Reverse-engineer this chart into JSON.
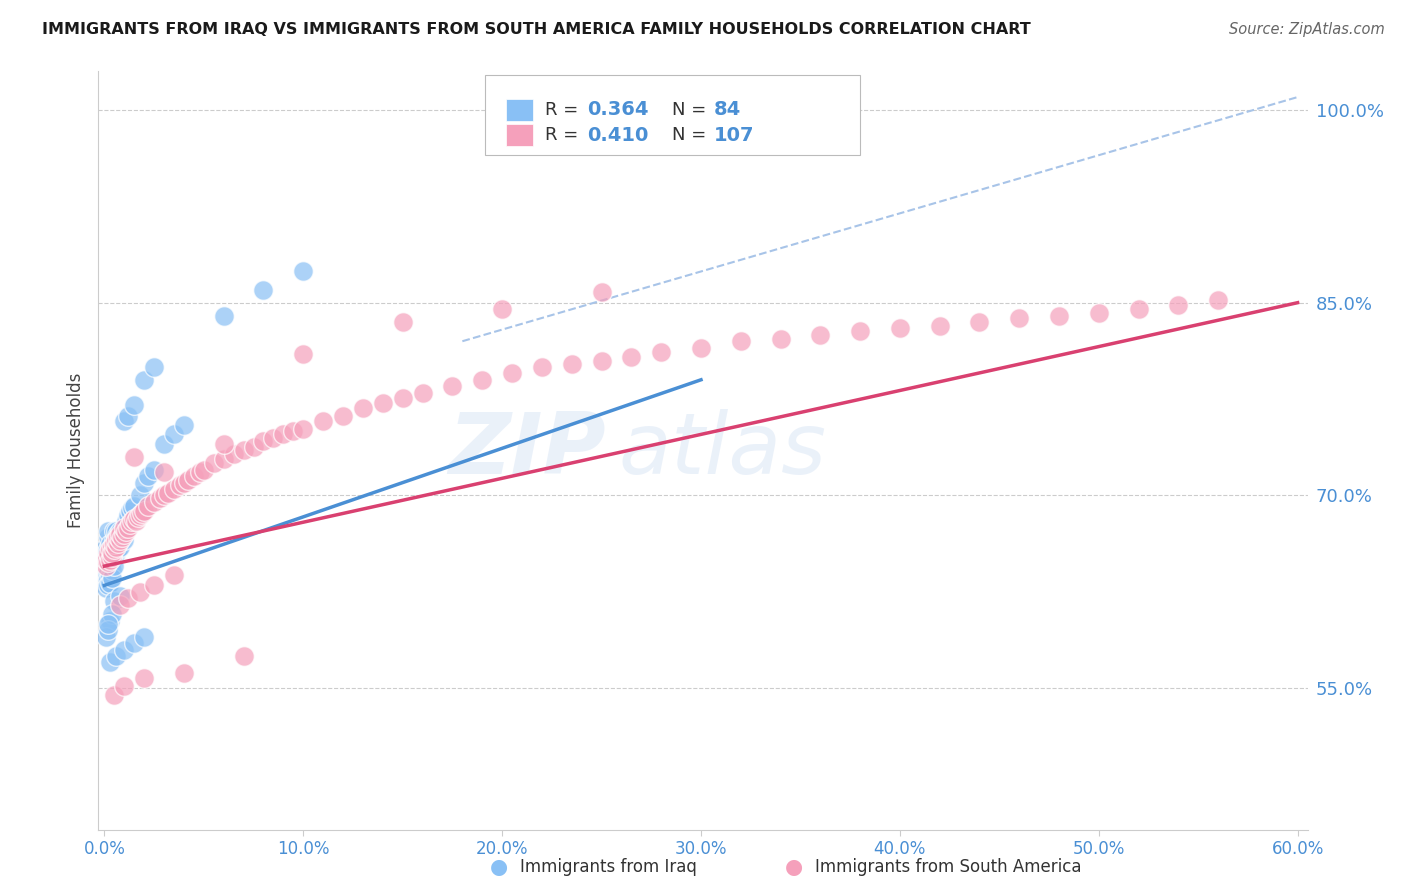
{
  "title": "IMMIGRANTS FROM IRAQ VS IMMIGRANTS FROM SOUTH AMERICA FAMILY HOUSEHOLDS CORRELATION CHART",
  "source": "Source: ZipAtlas.com",
  "xlabel_iraq": "Immigrants from Iraq",
  "xlabel_sa": "Immigrants from South America",
  "ylabel": "Family Households",
  "xlim": [
    -0.003,
    0.605
  ],
  "ylim": [
    0.44,
    1.03
  ],
  "yticks": [
    0.55,
    0.7,
    0.85,
    1.0
  ],
  "xticks": [
    0.0,
    0.1,
    0.2,
    0.3,
    0.4,
    0.5,
    0.6
  ],
  "legend_iraq_R": "0.364",
  "legend_iraq_N": "84",
  "legend_sa_R": "0.410",
  "legend_sa_N": "107",
  "color_iraq": "#89C0F5",
  "color_sa": "#F5A0BB",
  "color_line_iraq": "#4A8FD4",
  "color_line_sa": "#D94070",
  "color_dashed": "#A8C4E8",
  "color_label": "#4A8FD4",
  "watermark_zip": "#C5D8F0",
  "watermark_atlas": "#C5D8F0",
  "background_color": "#FFFFFF",
  "grid_color": "#CCCCCC",
  "iraq_x": [
    0.001,
    0.001,
    0.001,
    0.001,
    0.001,
    0.001,
    0.001,
    0.002,
    0.002,
    0.002,
    0.002,
    0.002,
    0.002,
    0.002,
    0.002,
    0.003,
    0.003,
    0.003,
    0.003,
    0.003,
    0.003,
    0.004,
    0.004,
    0.004,
    0.004,
    0.004,
    0.005,
    0.005,
    0.005,
    0.005,
    0.006,
    0.006,
    0.006,
    0.006,
    0.007,
    0.007,
    0.007,
    0.008,
    0.008,
    0.008,
    0.009,
    0.009,
    0.01,
    0.01,
    0.01,
    0.011,
    0.012,
    0.013,
    0.014,
    0.015,
    0.018,
    0.02,
    0.022,
    0.025,
    0.01,
    0.012,
    0.015,
    0.03,
    0.035,
    0.04,
    0.02,
    0.025,
    0.005,
    0.008,
    0.003,
    0.004,
    0.001,
    0.002,
    0.002,
    0.06,
    0.08,
    0.1,
    0.003,
    0.006,
    0.01,
    0.015,
    0.02
  ],
  "iraq_y": [
    0.66,
    0.655,
    0.64,
    0.648,
    0.638,
    0.632,
    0.628,
    0.658,
    0.652,
    0.645,
    0.64,
    0.635,
    0.668,
    0.672,
    0.63,
    0.662,
    0.656,
    0.65,
    0.644,
    0.638,
    0.632,
    0.655,
    0.66,
    0.648,
    0.642,
    0.636,
    0.665,
    0.658,
    0.672,
    0.645,
    0.66,
    0.668,
    0.672,
    0.655,
    0.665,
    0.658,
    0.67,
    0.668,
    0.672,
    0.66,
    0.665,
    0.67,
    0.67,
    0.675,
    0.665,
    0.68,
    0.685,
    0.688,
    0.69,
    0.692,
    0.7,
    0.71,
    0.715,
    0.72,
    0.758,
    0.762,
    0.77,
    0.74,
    0.748,
    0.755,
    0.79,
    0.8,
    0.618,
    0.622,
    0.602,
    0.608,
    0.59,
    0.595,
    0.6,
    0.84,
    0.86,
    0.875,
    0.57,
    0.575,
    0.58,
    0.585,
    0.59
  ],
  "sa_x": [
    0.001,
    0.001,
    0.002,
    0.002,
    0.003,
    0.003,
    0.004,
    0.004,
    0.004,
    0.005,
    0.005,
    0.006,
    0.006,
    0.007,
    0.007,
    0.008,
    0.008,
    0.009,
    0.01,
    0.01,
    0.011,
    0.012,
    0.013,
    0.014,
    0.015,
    0.016,
    0.017,
    0.018,
    0.019,
    0.02,
    0.022,
    0.025,
    0.028,
    0.03,
    0.032,
    0.035,
    0.038,
    0.04,
    0.042,
    0.045,
    0.048,
    0.05,
    0.055,
    0.06,
    0.065,
    0.07,
    0.075,
    0.08,
    0.085,
    0.09,
    0.095,
    0.1,
    0.11,
    0.12,
    0.13,
    0.14,
    0.15,
    0.16,
    0.175,
    0.19,
    0.205,
    0.22,
    0.235,
    0.25,
    0.265,
    0.28,
    0.3,
    0.32,
    0.34,
    0.36,
    0.38,
    0.4,
    0.42,
    0.44,
    0.46,
    0.48,
    0.5,
    0.52,
    0.54,
    0.56,
    0.015,
    0.03,
    0.06,
    0.1,
    0.15,
    0.2,
    0.25,
    0.005,
    0.01,
    0.02,
    0.04,
    0.07,
    0.008,
    0.012,
    0.018,
    0.025,
    0.035
  ],
  "sa_y": [
    0.645,
    0.65,
    0.648,
    0.655,
    0.65,
    0.658,
    0.652,
    0.66,
    0.655,
    0.658,
    0.662,
    0.66,
    0.665,
    0.663,
    0.668,
    0.665,
    0.67,
    0.668,
    0.67,
    0.675,
    0.672,
    0.675,
    0.678,
    0.68,
    0.682,
    0.68,
    0.683,
    0.685,
    0.686,
    0.688,
    0.692,
    0.695,
    0.698,
    0.7,
    0.702,
    0.705,
    0.708,
    0.71,
    0.712,
    0.715,
    0.718,
    0.72,
    0.725,
    0.728,
    0.732,
    0.735,
    0.738,
    0.742,
    0.745,
    0.748,
    0.75,
    0.752,
    0.758,
    0.762,
    0.768,
    0.772,
    0.776,
    0.78,
    0.785,
    0.79,
    0.795,
    0.8,
    0.802,
    0.805,
    0.808,
    0.812,
    0.815,
    0.82,
    0.822,
    0.825,
    0.828,
    0.83,
    0.832,
    0.835,
    0.838,
    0.84,
    0.842,
    0.845,
    0.848,
    0.852,
    0.73,
    0.718,
    0.74,
    0.81,
    0.835,
    0.845,
    0.858,
    0.545,
    0.552,
    0.558,
    0.562,
    0.575,
    0.615,
    0.62,
    0.625,
    0.63,
    0.638
  ],
  "iraq_line_x": [
    0.0,
    0.3
  ],
  "iraq_line_y": [
    0.63,
    0.79
  ],
  "sa_line_x": [
    0.0,
    0.6
  ],
  "sa_line_y": [
    0.645,
    0.85
  ],
  "dash_line_x": [
    0.18,
    0.6
  ],
  "dash_line_y": [
    0.82,
    1.01
  ]
}
